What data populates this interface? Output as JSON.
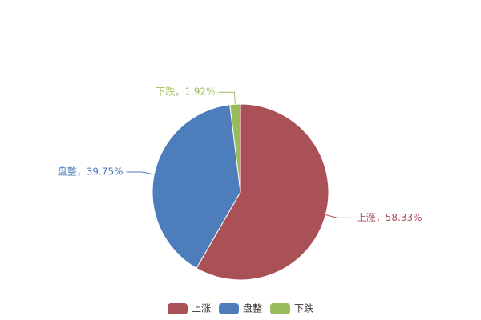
{
  "chart_data": {
    "type": "pie",
    "categories": [
      "上涨",
      "盘整",
      "下跌"
    ],
    "values": [
      58.33,
      39.75,
      1.92
    ],
    "value_labels": [
      "上涨，58.33%",
      "盘整，39.75%",
      "下跌，1.92%"
    ],
    "colors": [
      "#aa5158",
      "#4d7dba",
      "#9abb59"
    ],
    "legend": "bottom"
  }
}
